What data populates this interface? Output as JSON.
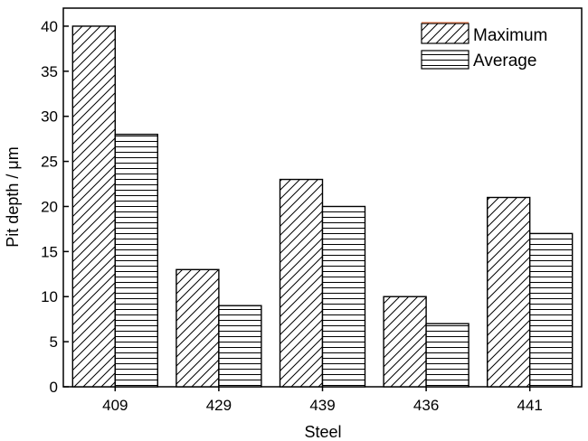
{
  "chart_data": {
    "type": "bar",
    "title": "",
    "xlabel": "Steel",
    "ylabel": "Pit depth / μm",
    "categories": [
      "409",
      "429",
      "439",
      "436",
      "441"
    ],
    "series": [
      {
        "name": "Maximum",
        "values": [
          40,
          13,
          23,
          10,
          21
        ],
        "pattern": "diagonal-hatch"
      },
      {
        "name": "Average",
        "values": [
          28,
          9,
          20,
          7,
          17
        ],
        "pattern": "horizontal-lines"
      }
    ],
    "ylim": [
      0,
      42
    ],
    "yticks": [
      0,
      5,
      10,
      15,
      20,
      25,
      30,
      35,
      40
    ],
    "grid": false,
    "legend_position": "top-right",
    "colors": {
      "bar_fill": "#ffffff",
      "bar_stroke": "#000000",
      "legend_highlight": "#e07a4f"
    }
  }
}
